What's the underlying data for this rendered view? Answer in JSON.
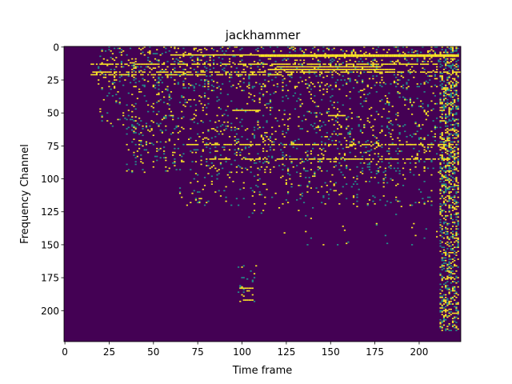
{
  "chart_data": {
    "type": "heatmap",
    "title": "jackhammer",
    "xlabel": "Time frame",
    "ylabel": "Frequency Channel",
    "xlim": [
      -0.5,
      223.5
    ],
    "ylim": [
      223.5,
      -0.5
    ],
    "x_ticks": [
      0,
      25,
      50,
      75,
      100,
      125,
      150,
      175,
      200
    ],
    "y_ticks": [
      0,
      25,
      50,
      75,
      100,
      125,
      150,
      175,
      200
    ],
    "x_tick_labels": [
      "0",
      "25",
      "50",
      "75",
      "100",
      "125",
      "150",
      "175",
      "200"
    ],
    "y_tick_labels": [
      "0",
      "25",
      "50",
      "75",
      "100",
      "125",
      "150",
      "175",
      "200"
    ],
    "n_frames": 224,
    "n_channels": 224,
    "colormap": "viridis",
    "background_color": "#440154",
    "active_color": "#fde725",
    "mid_color": "#21918c",
    "grid": false,
    "legend": "none",
    "bands": [
      {
        "channel": 6,
        "from_frame": 60,
        "to_frame": 222,
        "dense": true
      },
      {
        "channel": 7,
        "from_frame": 110,
        "to_frame": 222,
        "dense": true
      },
      {
        "channel": 13,
        "from_frame": 15,
        "to_frame": 210,
        "dense": false
      },
      {
        "channel": 15,
        "from_frame": 120,
        "to_frame": 178,
        "dense": true
      },
      {
        "channel": 17,
        "from_frame": 115,
        "to_frame": 185,
        "dense": true
      },
      {
        "channel": 19,
        "from_frame": 16,
        "to_frame": 223,
        "dense": false
      },
      {
        "channel": 21,
        "from_frame": 15,
        "to_frame": 130,
        "dense": false
      },
      {
        "channel": 48,
        "from_frame": 95,
        "to_frame": 110,
        "dense": true
      },
      {
        "channel": 52,
        "from_frame": 150,
        "to_frame": 158,
        "dense": true
      },
      {
        "channel": 74,
        "from_frame": 70,
        "to_frame": 222,
        "dense": false
      },
      {
        "channel": 85,
        "from_frame": 80,
        "to_frame": 222,
        "dense": false
      },
      {
        "channel": 183,
        "from_frame": 99,
        "to_frame": 106,
        "dense": true
      },
      {
        "channel": 192,
        "from_frame": 101,
        "to_frame": 106,
        "dense": true
      }
    ],
    "scatter_regions": [
      {
        "frames": [
          18,
          222
        ],
        "channels": [
          0,
          30
        ],
        "density": 0.12
      },
      {
        "frames": [
          20,
          222
        ],
        "channels": [
          30,
          60
        ],
        "density": 0.07
      },
      {
        "frames": [
          35,
          222
        ],
        "channels": [
          60,
          95
        ],
        "density": 0.1
      },
      {
        "frames": [
          65,
          222
        ],
        "channels": [
          95,
          120
        ],
        "density": 0.05
      },
      {
        "frames": [
          100,
          222
        ],
        "channels": [
          120,
          150
        ],
        "density": 0.012
      },
      {
        "frames": [
          98,
          108
        ],
        "channels": [
          165,
          195
        ],
        "density": 0.05
      },
      {
        "frames": [
          212,
          222
        ],
        "channels": [
          0,
          215
        ],
        "density": 0.35
      }
    ]
  }
}
